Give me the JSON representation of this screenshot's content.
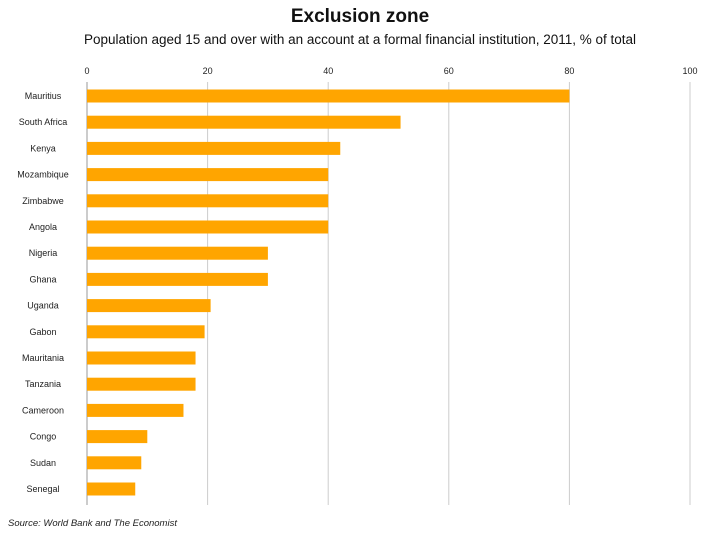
{
  "title": "Exclusion zone",
  "subtitle": "Population aged 15 and over with an account at a formal financial institution, 2011, % of total",
  "source": "Source: World Bank and The Economist",
  "colors": {
    "bar": "#FFA500",
    "grid": "#cccccc",
    "axis": "#999999"
  },
  "chart_data": {
    "type": "bar",
    "orientation": "horizontal",
    "title": "Exclusion zone",
    "subtitle": "Population aged 15 and over with an account at a formal financial institution, 2011, % of total",
    "categories": [
      "Mauritius",
      "South Africa",
      "Kenya",
      "Mozambique",
      "Zimbabwe",
      "Angola",
      "Nigeria",
      "Ghana",
      "Uganda",
      "Gabon",
      "Mauritania",
      "Tanzania",
      "Cameroon",
      "Congo",
      "Sudan",
      "Senegal"
    ],
    "values": [
      80,
      52,
      42,
      40,
      40,
      40,
      30,
      30,
      20.5,
      19.5,
      18,
      18,
      16,
      10,
      9,
      8
    ],
    "xlim": [
      0,
      100
    ],
    "xticks": [
      0,
      20,
      40,
      60,
      80,
      100
    ],
    "grid": true,
    "axis_position": "top"
  }
}
